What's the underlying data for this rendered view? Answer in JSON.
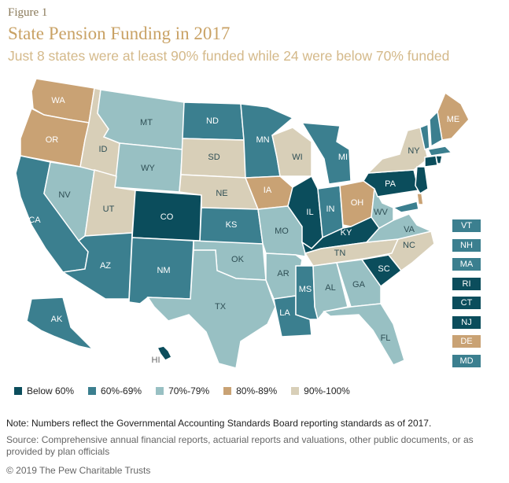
{
  "header": {
    "figure_label": "Figure 1",
    "title": "State Pension Funding in 2017",
    "subtitle": "Just 8 states were at least 90% funded while 24 were below 70% funded"
  },
  "colors": {
    "below60": "#0b4d5c",
    "60_69": "#3b7f8f",
    "70_79": "#98c0c3",
    "80_89": "#c9a274",
    "90_100": "#d8cfb8",
    "land_border": "#ffffff"
  },
  "legend": [
    {
      "label": "Below 60%",
      "key": "below60"
    },
    {
      "label": "60%-69%",
      "key": "60_69"
    },
    {
      "label": "70%-79%",
      "key": "70_79"
    },
    {
      "label": "80%-89%",
      "key": "80_89"
    },
    {
      "label": "90%-100%",
      "key": "90_100"
    }
  ],
  "small_states": [
    {
      "abbr": "VT",
      "key": "60_69"
    },
    {
      "abbr": "NH",
      "key": "60_69"
    },
    {
      "abbr": "MA",
      "key": "60_69"
    },
    {
      "abbr": "RI",
      "key": "below60"
    },
    {
      "abbr": "CT",
      "key": "below60"
    },
    {
      "abbr": "NJ",
      "key": "below60"
    },
    {
      "abbr": "DE",
      "key": "80_89"
    },
    {
      "abbr": "MD",
      "key": "60_69"
    }
  ],
  "states": [
    {
      "abbr": "WA",
      "key": "80_89"
    },
    {
      "abbr": "OR",
      "key": "80_89"
    },
    {
      "abbr": "CA",
      "key": "60_69"
    },
    {
      "abbr": "NV",
      "key": "70_79"
    },
    {
      "abbr": "ID",
      "key": "90_100"
    },
    {
      "abbr": "MT",
      "key": "70_79"
    },
    {
      "abbr": "WY",
      "key": "70_79"
    },
    {
      "abbr": "UT",
      "key": "90_100"
    },
    {
      "abbr": "AZ",
      "key": "60_69"
    },
    {
      "abbr": "CO",
      "key": "below60"
    },
    {
      "abbr": "NM",
      "key": "60_69"
    },
    {
      "abbr": "ND",
      "key": "60_69"
    },
    {
      "abbr": "SD",
      "key": "90_100"
    },
    {
      "abbr": "NE",
      "key": "90_100"
    },
    {
      "abbr": "KS",
      "key": "60_69"
    },
    {
      "abbr": "OK",
      "key": "70_79"
    },
    {
      "abbr": "TX",
      "key": "70_79"
    },
    {
      "abbr": "MN",
      "key": "60_69"
    },
    {
      "abbr": "IA",
      "key": "80_89"
    },
    {
      "abbr": "MO",
      "key": "70_79"
    },
    {
      "abbr": "AR",
      "key": "70_79"
    },
    {
      "abbr": "LA",
      "key": "60_69"
    },
    {
      "abbr": "WI",
      "key": "90_100"
    },
    {
      "abbr": "IL",
      "key": "below60"
    },
    {
      "abbr": "MI",
      "key": "60_69"
    },
    {
      "abbr": "IN",
      "key": "60_69"
    },
    {
      "abbr": "OH",
      "key": "80_89"
    },
    {
      "abbr": "KY",
      "key": "below60"
    },
    {
      "abbr": "TN",
      "key": "90_100"
    },
    {
      "abbr": "MS",
      "key": "60_69"
    },
    {
      "abbr": "AL",
      "key": "70_79"
    },
    {
      "abbr": "GA",
      "key": "70_79"
    },
    {
      "abbr": "FL",
      "key": "70_79"
    },
    {
      "abbr": "SC",
      "key": "below60"
    },
    {
      "abbr": "NC",
      "key": "90_100"
    },
    {
      "abbr": "VA",
      "key": "70_79"
    },
    {
      "abbr": "WV",
      "key": "70_79"
    },
    {
      "abbr": "PA",
      "key": "below60"
    },
    {
      "abbr": "NY",
      "key": "90_100"
    },
    {
      "abbr": "ME",
      "key": "80_89"
    },
    {
      "abbr": "AK",
      "key": "60_69"
    },
    {
      "abbr": "HI",
      "key": "below60"
    }
  ],
  "footer": {
    "note": "Note: Numbers reflect the Governmental Accounting Standards Board reporting standards as of 2017.",
    "source": "Source: Comprehensive annual financial reports, actuarial reports and valuations, other public documents, or as provided by plan officials",
    "copyright": "© 2019 The Pew Charitable Trusts"
  }
}
